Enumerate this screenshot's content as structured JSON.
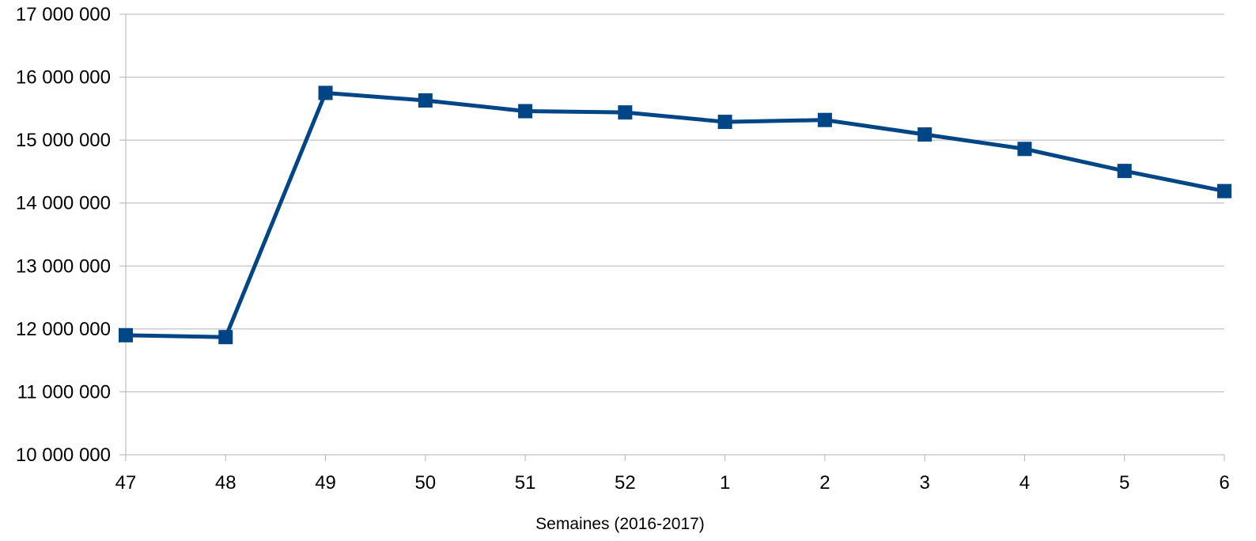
{
  "chart_data": {
    "type": "line",
    "title": "",
    "xlabel": "Semaines (2016-2017)",
    "ylabel": "",
    "categories": [
      "47",
      "48",
      "49",
      "50",
      "51",
      "52",
      "1",
      "2",
      "3",
      "4",
      "5",
      "6"
    ],
    "series": [
      {
        "values": [
          11900000,
          11870000,
          15750000,
          15630000,
          15460000,
          15440000,
          15290000,
          15320000,
          15090000,
          14860000,
          14510000,
          14190000
        ],
        "color": "#004586",
        "marker": "square"
      }
    ],
    "ylim": [
      10000000,
      17000000
    ],
    "yticks": [
      10000000,
      11000000,
      12000000,
      13000000,
      14000000,
      15000000,
      16000000,
      17000000
    ],
    "ytick_labels": [
      "10 000 000",
      "11 000 000",
      "12 000 000",
      "13 000 000",
      "14 000 000",
      "15 000 000",
      "16 000 000",
      "17 000 000"
    ],
    "grid": "horizontal",
    "legend": "none"
  }
}
